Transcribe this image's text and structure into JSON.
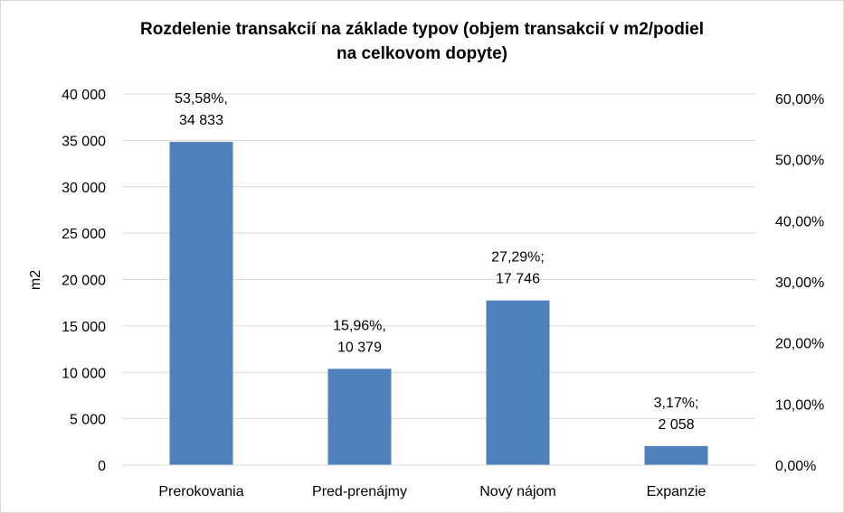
{
  "chart_data": {
    "type": "bar",
    "title_line1": "Rozdelenie transakcií na základe typov (objem transakcií v m2/podiel",
    "title_line2": "na celkovom dopyte)",
    "ylabel": "m2",
    "categories": [
      "Prerokovania",
      "Pred-prenájmy",
      "Nový nájom",
      "Expanzie"
    ],
    "values": [
      34833,
      10379,
      17746,
      2058
    ],
    "data_labels": [
      [
        "53,58%,",
        "34 833"
      ],
      [
        "15,96%,",
        "10 379"
      ],
      [
        "27,29%;",
        "17 746"
      ],
      [
        "3,17%;",
        "2 058"
      ]
    ],
    "ylim": [
      0,
      40000
    ],
    "y_ticks": [
      "0",
      "5 000",
      "10 000",
      "15 000",
      "20 000",
      "25 000",
      "30 000",
      "35 000",
      "40 000"
    ],
    "y2lim": [
      0,
      0.6
    ],
    "y2_ticks": [
      "0,00%",
      "10,00%",
      "20,00%",
      "30,00%",
      "40,00%",
      "50,00%",
      "60,00%"
    ],
    "grid": true,
    "bar_color": "#4f81bd",
    "grid_color": "#d9d9d9"
  }
}
